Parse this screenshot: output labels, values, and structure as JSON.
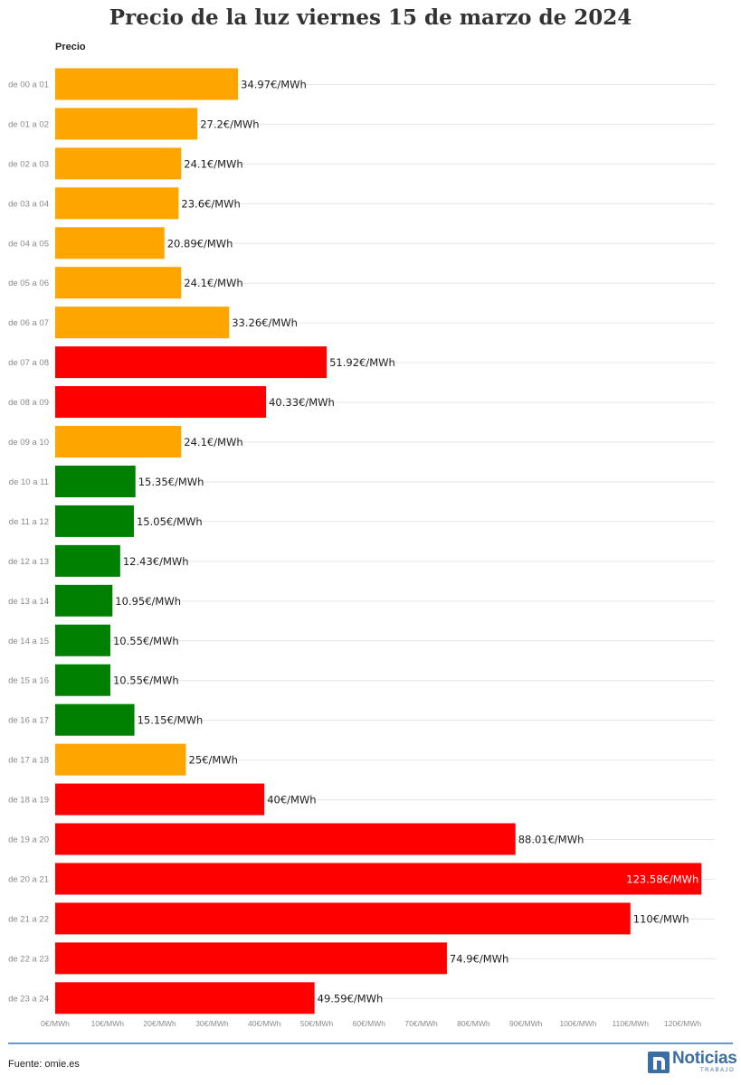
{
  "title": "Precio de la luz viernes 15 de marzo de 2024",
  "source": "Fuente: omie.es",
  "logo": {
    "name": "Noticias",
    "sub": "TRABAJO"
  },
  "colors": {
    "low": "#008000",
    "mid": "#ffa500",
    "high": "#ff0000",
    "title": "#333333",
    "rule": "#6a98c8",
    "logo": "#3b6ea5"
  },
  "chart_data": {
    "type": "bar",
    "orientation": "horizontal",
    "series_name": "Precio",
    "value_suffix": "€/MWh",
    "categories": [
      "de 00 a 01",
      "de 01 a 02",
      "de 02 a 03",
      "de 03 a 04",
      "de 04 a 05",
      "de 05 a 06",
      "de 06 a 07",
      "de 07 a 08",
      "de 08 a 09",
      "de 09 a 10",
      "de 10 a 11",
      "de 11 a 12",
      "de 12 a 13",
      "de 13 a 14",
      "de 14 a 15",
      "de 15 a 16",
      "de 16 a 17",
      "de 17 a 18",
      "de 18 a 19",
      "de 19 a 20",
      "de 20 a 21",
      "de 21 a 22",
      "de 22 a 23",
      "de 23 a 24"
    ],
    "values": [
      34.97,
      27.2,
      24.1,
      23.6,
      20.89,
      24.1,
      33.26,
      51.92,
      40.33,
      24.1,
      15.35,
      15.05,
      12.43,
      10.95,
      10.55,
      10.55,
      15.15,
      25,
      40,
      88.01,
      123.58,
      110,
      74.9,
      49.59
    ],
    "value_labels": [
      "34.97€/MWh",
      "27.2€/MWh",
      "24.1€/MWh",
      "23.6€/MWh",
      "20.89€/MWh",
      "24.1€/MWh",
      "33.26€/MWh",
      "51.92€/MWh",
      "40.33€/MWh",
      "24.1€/MWh",
      "15.35€/MWh",
      "15.05€/MWh",
      "12.43€/MWh",
      "10.95€/MWh",
      "10.55€/MWh",
      "10.55€/MWh",
      "15.15€/MWh",
      "25€/MWh",
      "40€/MWh",
      "88.01€/MWh",
      "123.58€/MWh",
      "110€/MWh",
      "74.9€/MWh",
      "49.59€/MWh"
    ],
    "bar_colors": [
      "#ffa500",
      "#ffa500",
      "#ffa500",
      "#ffa500",
      "#ffa500",
      "#ffa500",
      "#ffa500",
      "#ff0000",
      "#ff0000",
      "#ffa500",
      "#008000",
      "#008000",
      "#008000",
      "#008000",
      "#008000",
      "#008000",
      "#008000",
      "#ffa500",
      "#ff0000",
      "#ff0000",
      "#ff0000",
      "#ff0000",
      "#ff0000",
      "#ff0000"
    ],
    "x_ticks": [
      0,
      10,
      20,
      30,
      40,
      50,
      60,
      70,
      80,
      90,
      100,
      110,
      120
    ],
    "x_tick_labels": [
      "0€/MWh",
      "10€/MWh",
      "20€/MWh",
      "30€/MWh",
      "40€/MWh",
      "50€/MWh",
      "60€/MWh",
      "70€/MWh",
      "80€/MWh",
      "90€/MWh",
      "100€/MWh",
      "110€/MWh",
      "120€/MWh"
    ],
    "xlim": [
      0,
      126
    ],
    "grid": true,
    "legend": "none"
  }
}
